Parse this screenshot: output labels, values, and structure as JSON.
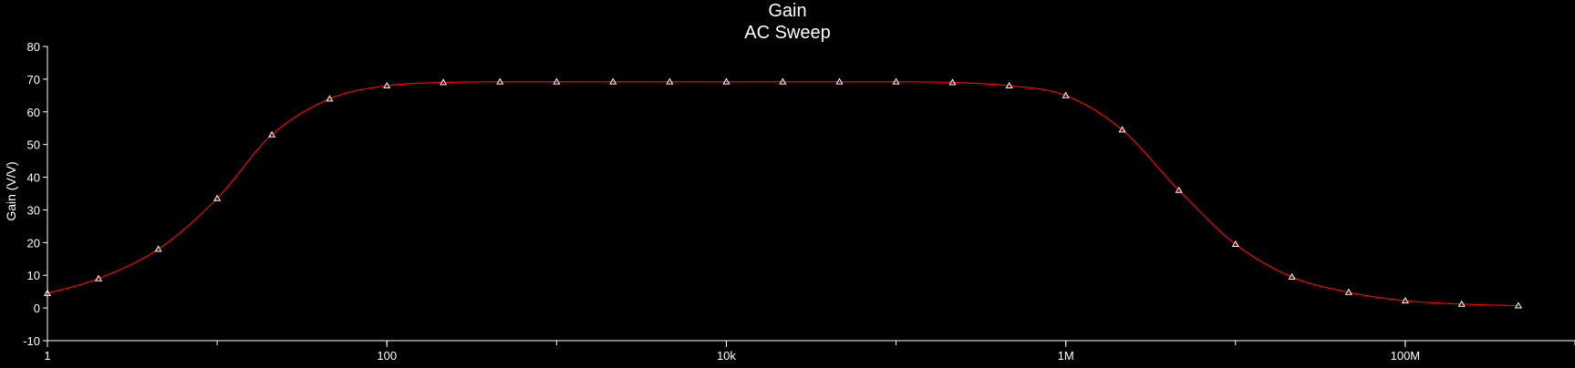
{
  "chart_data": {
    "type": "line",
    "title": "Gain",
    "subtitle": "AC Sweep",
    "xlabel": "",
    "ylabel": "Gain (V/V)",
    "x_scale": "log",
    "xlim": [
      1,
      1000000000
    ],
    "ylim": [
      -10,
      80
    ],
    "x_ticks": [
      {
        "value": 1,
        "label": "1"
      },
      {
        "value": 100,
        "label": "100"
      },
      {
        "value": 10000,
        "label": "10k"
      },
      {
        "value": 1000000,
        "label": "1M"
      },
      {
        "value": 100000000,
        "label": "100M"
      }
    ],
    "y_ticks": [
      -10,
      0,
      10,
      20,
      30,
      40,
      50,
      60,
      70,
      80
    ],
    "grid": false,
    "colors": {
      "background": "#000000",
      "axis": "#ffffff",
      "line": "#ff0000",
      "marker": "#ffffff"
    },
    "marker": "triangle",
    "series": [
      {
        "x": [
          1,
          2,
          4.5,
          10,
          21,
          46,
          100,
          215,
          464,
          1000,
          2150,
          4640,
          10000,
          21500,
          46400,
          100000,
          215000,
          464000,
          1000000,
          2150000,
          4640000,
          10000000,
          21500000,
          46400000,
          100000000,
          215000000,
          464000000
        ],
        "y": [
          4.5,
          9,
          18,
          33.5,
          53,
          64,
          68,
          69,
          69.2,
          69.2,
          69.2,
          69.2,
          69.2,
          69.2,
          69.2,
          69.2,
          69,
          68,
          65,
          54.5,
          36,
          19.5,
          9.5,
          4.8,
          2.2,
          1.2,
          0.7
        ]
      }
    ]
  }
}
